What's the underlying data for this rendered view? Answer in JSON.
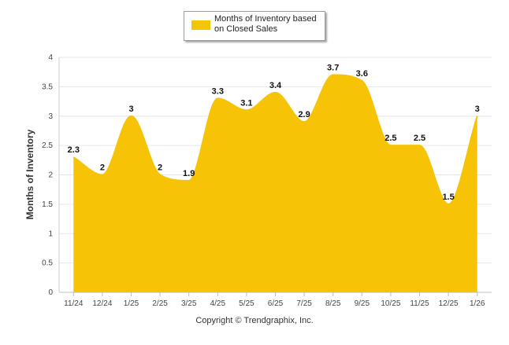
{
  "chart_data": {
    "type": "area",
    "title": "",
    "xlabel": "",
    "ylabel": "Months of Inventory",
    "ylim": [
      0,
      4
    ],
    "yticks": [
      0,
      0.5,
      1,
      1.5,
      2,
      2.5,
      3,
      3.5,
      4
    ],
    "categories": [
      "11/24",
      "12/24",
      "1/25",
      "2/25",
      "3/25",
      "4/25",
      "5/25",
      "6/25",
      "7/25",
      "8/25",
      "9/25",
      "10/25",
      "11/25",
      "12/25",
      "1/26"
    ],
    "series": [
      {
        "name": "Months of Inventory based on Closed Sales",
        "values": [
          2.3,
          2,
          3,
          2,
          1.9,
          3.3,
          3.1,
          3.4,
          2.9,
          3.7,
          3.6,
          2.5,
          2.5,
          1.5,
          3
        ],
        "color": "#F6C306"
      }
    ],
    "grid": true,
    "legend_position": "top-center"
  },
  "legend": {
    "label": "Months of Inventory based on Closed Sales"
  },
  "footer": {
    "copyright": "Copyright © Trendgraphix, Inc."
  }
}
